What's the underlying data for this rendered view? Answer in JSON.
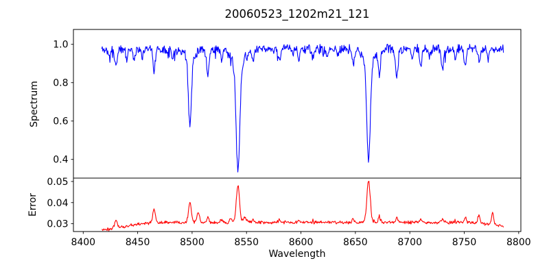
{
  "figure": {
    "background_color": "#ffffff",
    "text_color": "#000000",
    "spine_color": "#000000"
  },
  "chart_data": {
    "type": "line",
    "title": "20060523_1202m21_121",
    "xlabel": "Wavelength",
    "grid": false,
    "legend": null,
    "xlim": [
      8391,
      8802
    ],
    "x_data_range": [
      8417,
      8786
    ],
    "sampling_step_angstrom": 0.5,
    "noise_seed": 11,
    "xticks": {
      "values": [
        8400,
        8450,
        8500,
        8550,
        8600,
        8650,
        8700,
        8750,
        8800
      ],
      "labels": [
        "8400",
        "8450",
        "8500",
        "8550",
        "8600",
        "8650",
        "8700",
        "8750",
        "8800"
      ]
    },
    "panels": [
      {
        "name": "spectrum",
        "ylabel": "Spectrum",
        "line_color": "#0000ff",
        "ylim": [
          0.3025,
          1.0775
        ],
        "yticks": {
          "values": [
            0.4,
            0.6,
            0.8,
            1.0
          ],
          "labels": [
            "0.4",
            "0.6",
            "0.8",
            "1.0"
          ]
        },
        "continuum_level": 0.975,
        "noise": {
          "amplitude": 0.028,
          "down_spike_prob": 0.05,
          "down_spike_max": 0.05,
          "up_spike_prob": 0.025,
          "up_spike_max": 0.022
        },
        "absorption_lines": [
          {
            "center": 8498.0,
            "depth": 0.36,
            "sigma": 1.4
          },
          {
            "center": 8498.0,
            "depth": 0.04,
            "sigma": 4.5
          },
          {
            "center": 8542.1,
            "depth": 0.555,
            "sigma": 1.7
          },
          {
            "center": 8542.1,
            "depth": 0.075,
            "sigma": 6.0
          },
          {
            "center": 8662.1,
            "depth": 0.5,
            "sigma": 1.6
          },
          {
            "center": 8662.1,
            "depth": 0.075,
            "sigma": 5.0
          },
          {
            "center": 8424.0,
            "depth": 0.05,
            "sigma": 1.0
          },
          {
            "center": 8430.0,
            "depth": 0.085,
            "sigma": 1.1
          },
          {
            "center": 8440.0,
            "depth": 0.055,
            "sigma": 0.9
          },
          {
            "center": 8447.0,
            "depth": 0.055,
            "sigma": 0.9
          },
          {
            "center": 8454.0,
            "depth": 0.04,
            "sigma": 0.8
          },
          {
            "center": 8465.0,
            "depth": 0.105,
            "sigma": 1.1
          },
          {
            "center": 8482.0,
            "depth": 0.05,
            "sigma": 0.9
          },
          {
            "center": 8514.5,
            "depth": 0.135,
            "sigma": 1.2
          },
          {
            "center": 8527.0,
            "depth": 0.05,
            "sigma": 0.9
          },
          {
            "center": 8556.0,
            "depth": 0.06,
            "sigma": 1.0
          },
          {
            "center": 8580.0,
            "depth": 0.06,
            "sigma": 1.0
          },
          {
            "center": 8598.0,
            "depth": 0.055,
            "sigma": 0.9
          },
          {
            "center": 8611.0,
            "depth": 0.05,
            "sigma": 0.9
          },
          {
            "center": 8624.0,
            "depth": 0.045,
            "sigma": 0.9
          },
          {
            "center": 8634.0,
            "depth": 0.04,
            "sigma": 0.8
          },
          {
            "center": 8648.0,
            "depth": 0.09,
            "sigma": 1.0
          },
          {
            "center": 8672.0,
            "depth": 0.12,
            "sigma": 1.0
          },
          {
            "center": 8688.0,
            "depth": 0.15,
            "sigma": 1.1
          },
          {
            "center": 8702.0,
            "depth": 0.05,
            "sigma": 0.9
          },
          {
            "center": 8710.0,
            "depth": 0.1,
            "sigma": 1.0
          },
          {
            "center": 8718.0,
            "depth": 0.05,
            "sigma": 0.9
          },
          {
            "center": 8730.0,
            "depth": 0.11,
            "sigma": 1.0
          },
          {
            "center": 8742.0,
            "depth": 0.05,
            "sigma": 0.9
          },
          {
            "center": 8751.0,
            "depth": 0.09,
            "sigma": 1.0
          },
          {
            "center": 8764.0,
            "depth": 0.065,
            "sigma": 0.9
          },
          {
            "center": 8772.0,
            "depth": 0.05,
            "sigma": 0.9
          }
        ]
      },
      {
        "name": "error",
        "ylabel": "Error",
        "line_color": "#ff0000",
        "ylim": [
          0.0263,
          0.0516
        ],
        "yticks": {
          "values": [
            0.03,
            0.04,
            0.05
          ],
          "labels": [
            "0.03",
            "0.04",
            "0.05"
          ]
        },
        "baseline": 0.0306,
        "baseline_start": 0.0272,
        "start_rise_scale": 20,
        "end_droop": 0.0016,
        "end_droop_scale": 12,
        "noise": {
          "amplitude": 0.0009,
          "up_spike_prob": 0.03,
          "up_spike_max": 0.0012
        },
        "error_spikes": [
          {
            "center": 8430.0,
            "amplitude": 0.0038,
            "sigma": 1.2
          },
          {
            "center": 8465.0,
            "amplitude": 0.0063,
            "sigma": 1.2
          },
          {
            "center": 8498.0,
            "amplitude": 0.0095,
            "sigma": 1.3
          },
          {
            "center": 8505.5,
            "amplitude": 0.005,
            "sigma": 1.2
          },
          {
            "center": 8514.5,
            "amplitude": 0.0022,
            "sigma": 1.0
          },
          {
            "center": 8527.0,
            "amplitude": 0.0012,
            "sigma": 1.0
          },
          {
            "center": 8535.5,
            "amplitude": 0.0018,
            "sigma": 1.0
          },
          {
            "center": 8542.1,
            "amplitude": 0.017,
            "sigma": 1.5
          },
          {
            "center": 8548.5,
            "amplitude": 0.0028,
            "sigma": 1.2
          },
          {
            "center": 8556.0,
            "amplitude": 0.0013,
            "sigma": 1.0
          },
          {
            "center": 8580.0,
            "amplitude": 0.0012,
            "sigma": 1.0
          },
          {
            "center": 8598.0,
            "amplitude": 0.001,
            "sigma": 1.0
          },
          {
            "center": 8648.0,
            "amplitude": 0.0016,
            "sigma": 1.0
          },
          {
            "center": 8662.1,
            "amplitude": 0.02,
            "sigma": 1.5
          },
          {
            "center": 8672.0,
            "amplitude": 0.0024,
            "sigma": 1.0
          },
          {
            "center": 8688.0,
            "amplitude": 0.002,
            "sigma": 1.0
          },
          {
            "center": 8710.0,
            "amplitude": 0.0016,
            "sigma": 1.0
          },
          {
            "center": 8730.0,
            "amplitude": 0.0018,
            "sigma": 1.0
          },
          {
            "center": 8751.0,
            "amplitude": 0.002,
            "sigma": 1.0
          },
          {
            "center": 8763.5,
            "amplitude": 0.004,
            "sigma": 1.0
          },
          {
            "center": 8776.0,
            "amplitude": 0.0058,
            "sigma": 1.0
          }
        ]
      }
    ]
  }
}
